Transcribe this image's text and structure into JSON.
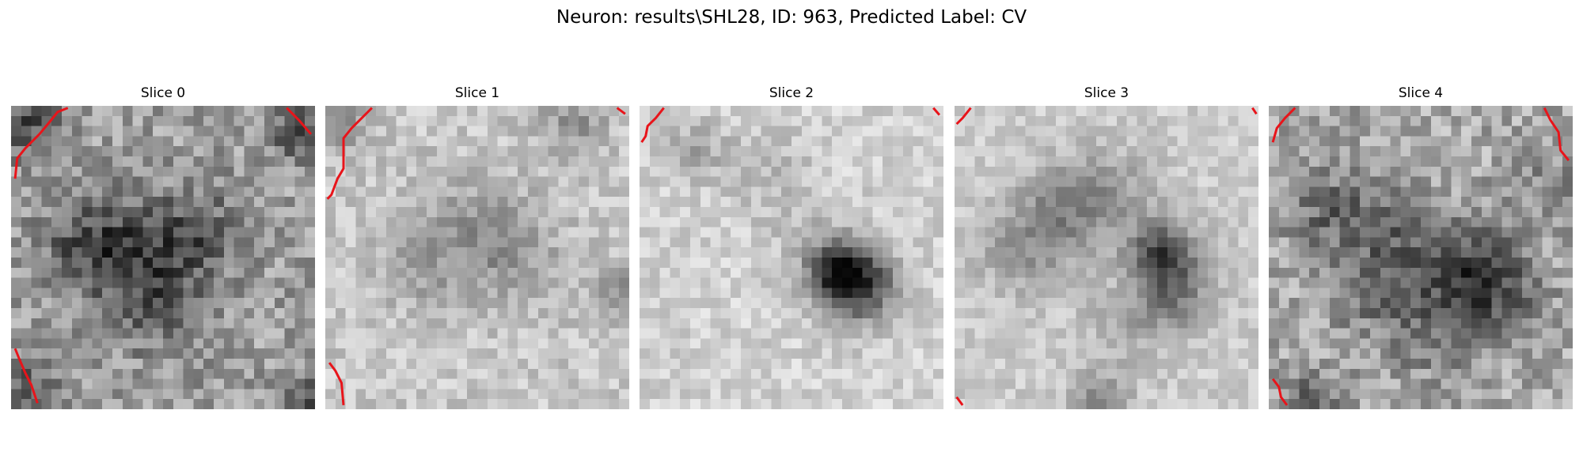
{
  "figure": {
    "title": "Neuron: results\\SHL28, ID: 963, Predicted Label: CV"
  },
  "panels": [
    {
      "title": "Slice 0"
    },
    {
      "title": "Slice 1"
    },
    {
      "title": "Slice 2"
    },
    {
      "title": "Slice 3"
    },
    {
      "title": "Slice 4"
    }
  ],
  "colors": {
    "contour": "#e8141a",
    "background": "#ffffff"
  },
  "image": {
    "colormap": "grayscale",
    "grid": "30x30 pixels per slice"
  }
}
